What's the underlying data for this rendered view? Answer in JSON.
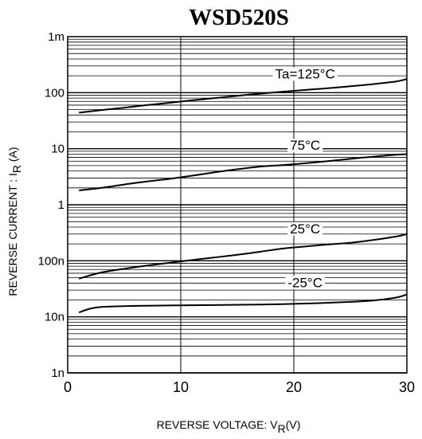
{
  "chart_data": {
    "type": "line",
    "title": "WSD520S",
    "xlabel": "REVERSE VOLTAGE: V",
    "xlabel_sub": "R",
    "xlabel_tail": "(V)",
    "ylabel": "REVERSE  CURRENT : I",
    "ylabel_sub": "R",
    "ylabel_tail": " (A)",
    "x_scale": "linear",
    "y_scale": "log",
    "xlim": [
      0,
      30
    ],
    "ylim_amps": [
      1e-09,
      0.001
    ],
    "x_ticks": [
      {
        "value": 0,
        "label": "0"
      },
      {
        "value": 10,
        "label": "10"
      },
      {
        "value": 20,
        "label": "20"
      },
      {
        "value": 30,
        "label": "30"
      }
    ],
    "y_ticks": [
      {
        "value": 0.001,
        "label": "1m"
      },
      {
        "value": 0.0001,
        "label": "100"
      },
      {
        "value": 1e-05,
        "label": "10"
      },
      {
        "value": 1e-06,
        "label": "1"
      },
      {
        "value": 1e-07,
        "label": "100n"
      },
      {
        "value": 1e-08,
        "label": "10n"
      },
      {
        "value": 1e-09,
        "label": "1n"
      }
    ],
    "grid": true,
    "series": [
      {
        "name": "Ta=125°C",
        "x": [
          1,
          3,
          5,
          7,
          9,
          11,
          13,
          15,
          17,
          19,
          21,
          23,
          25,
          27,
          29,
          30
        ],
        "y": [
          4.4e-05,
          4.9e-05,
          5.4e-05,
          6e-05,
          6.6e-05,
          7.3e-05,
          8e-05,
          8.8e-05,
          9.6e-05,
          0.000104,
          0.000112,
          0.00012,
          0.00013,
          0.000142,
          0.000158,
          0.000175
        ]
      },
      {
        "name": "75°C",
        "x": [
          1,
          3,
          5,
          7,
          9,
          11,
          13,
          15,
          17,
          19,
          21,
          23,
          25,
          27,
          29,
          30
        ],
        "y": [
          1.8e-06,
          2e-06,
          2.3e-06,
          2.6e-06,
          2.9e-06,
          3.3e-06,
          3.8e-06,
          4.3e-06,
          4.8e-06,
          5.1e-06,
          5.5e-06,
          6e-06,
          6.6e-06,
          7.2e-06,
          7.8e-06,
          8e-06
        ]
      },
      {
        "name": "25°C",
        "x": [
          1,
          3,
          5,
          7,
          9,
          11,
          13,
          15,
          17,
          19,
          21,
          23,
          25,
          27,
          29,
          30
        ],
        "y": [
          4.8e-08,
          6.2e-08,
          7.2e-08,
          8.2e-08,
          9.2e-08,
          1.03e-07,
          1.15e-07,
          1.28e-07,
          1.45e-07,
          1.65e-07,
          1.8e-07,
          1.95e-07,
          2.1e-07,
          2.35e-07,
          2.7e-07,
          3e-07
        ]
      },
      {
        "name": "-25°C",
        "x": [
          1,
          2,
          3,
          5,
          7,
          10,
          13,
          16,
          19,
          22,
          25,
          27,
          29,
          30
        ],
        "y": [
          1.2e-08,
          1.4e-08,
          1.5e-08,
          1.55e-08,
          1.58e-08,
          1.6e-08,
          1.62e-08,
          1.65e-08,
          1.68e-08,
          1.75e-08,
          1.85e-08,
          1.95e-08,
          2.2e-08,
          2.5e-08
        ]
      }
    ],
    "curve_labels": [
      {
        "text": "Ta=125°C",
        "x": 21,
        "y": 0.00018
      },
      {
        "text": "75°C",
        "x": 21,
        "y": 9.5e-06
      },
      {
        "text": "25°C",
        "x": 21,
        "y": 3.1e-07
      },
      {
        "text": "-25°C",
        "x": 21,
        "y": 3.4e-08
      }
    ]
  }
}
